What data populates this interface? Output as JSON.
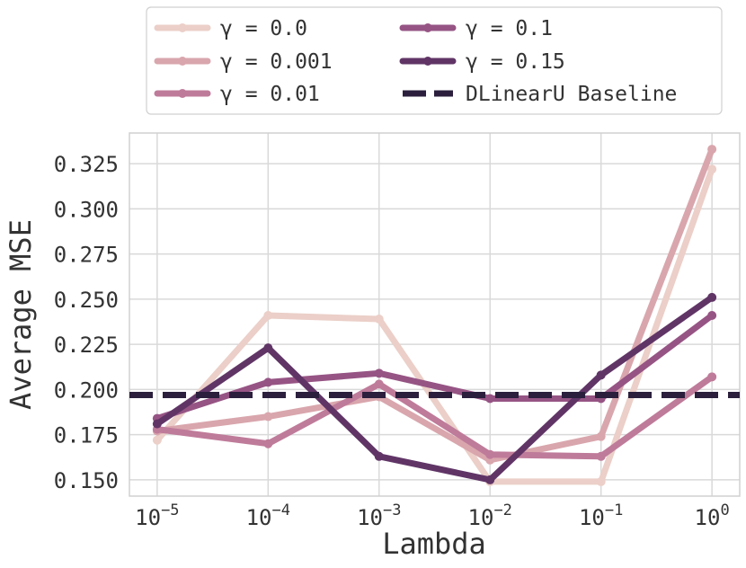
{
  "chart_data": {
    "type": "line",
    "xlabel": "Lambda",
    "ylabel": "Average MSE",
    "x_tick_labels": [
      {
        "base": "10",
        "exp": "−5"
      },
      {
        "base": "10",
        "exp": "−4"
      },
      {
        "base": "10",
        "exp": "−3"
      },
      {
        "base": "10",
        "exp": "−2"
      },
      {
        "base": "10",
        "exp": "−1"
      },
      {
        "base": "10",
        "exp": "0"
      }
    ],
    "x_values": [
      -5,
      -4,
      -3,
      -2,
      -1,
      0
    ],
    "y_tick_values": [
      0.15,
      0.175,
      0.2,
      0.225,
      0.25,
      0.275,
      0.3,
      0.325
    ],
    "y_tick_labels": [
      "0.150",
      "0.175",
      "0.200",
      "0.225",
      "0.250",
      "0.275",
      "0.300",
      "0.325"
    ],
    "xlim": [
      -5.25,
      0.25
    ],
    "ylim": [
      0.141,
      0.342
    ],
    "grid": true,
    "legend_position": "top-center",
    "series": [
      {
        "name": "γ = 0.0",
        "color": "#ebcfc8",
        "values": [
          0.172,
          0.241,
          0.239,
          0.149,
          0.149,
          0.322
        ]
      },
      {
        "name": "γ = 0.001",
        "color": "#d9a6ad",
        "values": [
          0.177,
          0.185,
          0.196,
          0.161,
          0.174,
          0.333
        ]
      },
      {
        "name": "γ = 0.01",
        "color": "#bf7b9a",
        "values": [
          0.178,
          0.17,
          0.203,
          0.164,
          0.163,
          0.207
        ]
      },
      {
        "name": "γ = 0.1",
        "color": "#965484",
        "values": [
          0.184,
          0.204,
          0.209,
          0.195,
          0.195,
          0.241
        ]
      },
      {
        "name": "γ = 0.15",
        "color": "#603566",
        "values": [
          0.181,
          0.223,
          0.163,
          0.15,
          0.208,
          0.251
        ]
      }
    ],
    "baseline": {
      "name": "DLinearU Baseline",
      "color": "#2b1f3d",
      "value": 0.197
    }
  }
}
